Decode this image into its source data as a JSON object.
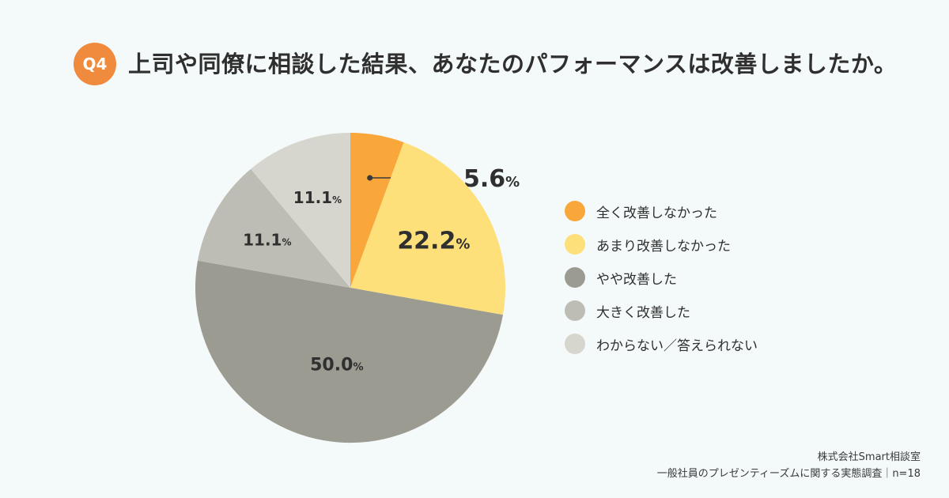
{
  "question": {
    "badge": "Q4",
    "title": "上司や同僚に相談した結果、あなたのパフォーマンスは改善しましたか。"
  },
  "chart_data": {
    "type": "pie",
    "categories": [
      "全く改善しなかった",
      "あまり改善しなかった",
      "やや改善した",
      "大きく改善した",
      "わからない／答えられない"
    ],
    "values": [
      5.6,
      22.2,
      50.0,
      11.1,
      11.1
    ],
    "labels": [
      "5.6",
      "22.2",
      "50.0",
      "11.1",
      "11.1"
    ],
    "unit": "%",
    "colors": [
      "#f9a63a",
      "#fde07a",
      "#9b9b92",
      "#bdbdb5",
      "#d7d6ce"
    ],
    "start_angle": "top",
    "direction": "clockwise",
    "legend_position": "right"
  },
  "source": {
    "company": "株式会社Smart相談室",
    "survey": "一般社員のプレゼンティーズムに関する実態調査｜n=18"
  }
}
